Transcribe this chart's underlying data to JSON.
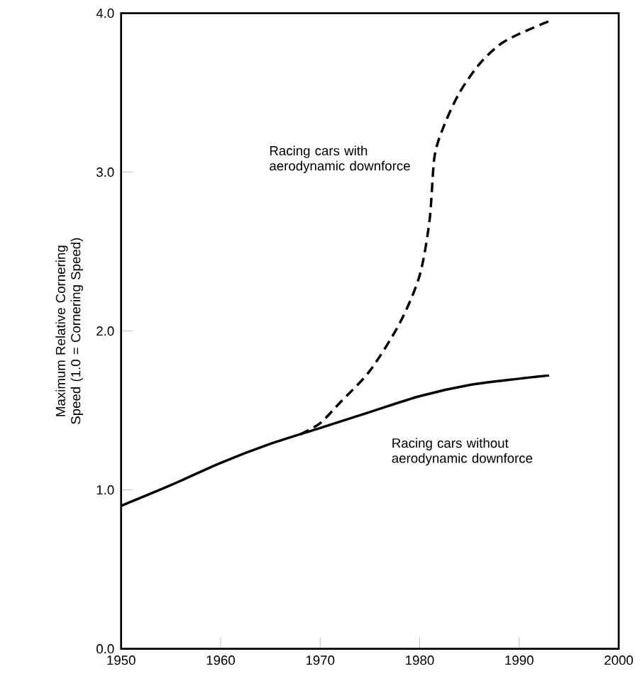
{
  "chart_data": {
    "type": "line",
    "ylabel": "Maximum Relative Cornering Speed (1.0 = Cornering Speed)",
    "xlim": [
      1950,
      2000
    ],
    "ylim": [
      0,
      4
    ],
    "xticks": [
      1950,
      1960,
      1970,
      1980,
      1990,
      2000
    ],
    "yticks": [
      {
        "value": 0,
        "label": "0.0"
      },
      {
        "value": 1,
        "label": "1.0"
      },
      {
        "value": 2,
        "label": "2.0"
      },
      {
        "value": 3,
        "label": "3.0"
      },
      {
        "value": 4,
        "label": "4.0"
      }
    ],
    "grid": false,
    "series": [
      {
        "name": "Racing cars with aerodynamic downforce",
        "color": "#000000",
        "line_style": "dashed",
        "x": [
          1968,
          1970,
          1972,
          1975,
          1978,
          1980,
          1981,
          1981.5,
          1982.5,
          1984,
          1986,
          1988,
          1990,
          1993
        ],
        "values": [
          1.35,
          1.42,
          1.55,
          1.75,
          2.05,
          2.35,
          2.7,
          3.1,
          3.3,
          3.5,
          3.68,
          3.8,
          3.87,
          3.95
        ]
      },
      {
        "name": "Racing cars without aerodynamic downforce",
        "color": "#000000",
        "line_style": "solid",
        "x": [
          1950,
          1955,
          1960,
          1965,
          1970,
          1975,
          1980,
          1985,
          1990,
          1993
        ],
        "values": [
          0.9,
          1.03,
          1.17,
          1.29,
          1.39,
          1.49,
          1.59,
          1.66,
          1.7,
          1.72
        ]
      }
    ]
  }
}
